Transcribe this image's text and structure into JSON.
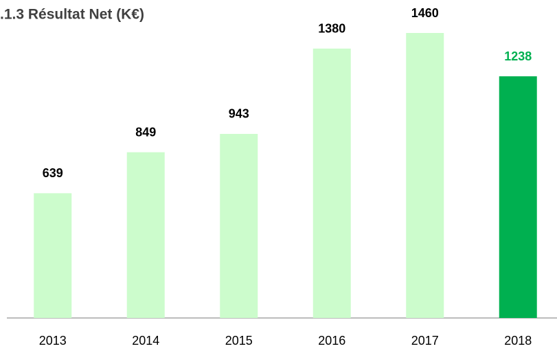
{
  "chart_data": {
    "type": "bar",
    "title": ".1.3 Résultat Net (K€)",
    "categories": [
      "2013",
      "2014",
      "2015",
      "2016",
      "2017",
      "2018"
    ],
    "values": [
      639,
      849,
      943,
      1380,
      1460,
      1238
    ],
    "colors": [
      "#ccfccc",
      "#ccfccc",
      "#ccfccc",
      "#ccfccc",
      "#ccfccc",
      "#00b050"
    ],
    "label_colors": [
      "#000000",
      "#000000",
      "#000000",
      "#000000",
      "#000000",
      "#00b050"
    ]
  }
}
